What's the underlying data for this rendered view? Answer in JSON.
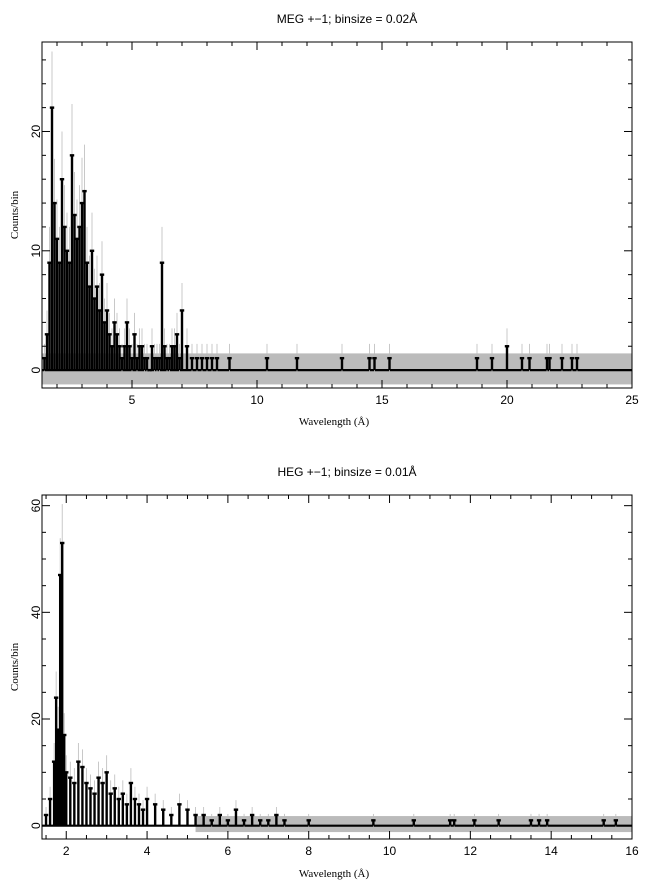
{
  "chart_data": [
    {
      "type": "histogram",
      "title": "MEG +−1; binsize = 0.02Å",
      "xlabel": "Wavelength (Å)",
      "ylabel": "Counts/bin",
      "xlim": [
        1.4,
        25
      ],
      "ylim": [
        -1.5,
        27.5
      ],
      "xticks": [
        5,
        10,
        15,
        20,
        25
      ],
      "yticks": [
        0,
        10,
        20
      ],
      "model_band": {
        "y_low": -1.2,
        "y_high": 1.4,
        "x_start": 1.4
      },
      "colors": {
        "data": "#000000",
        "error_bars": "#bbbbbb",
        "model_band": "#bbbbbb"
      },
      "data": {
        "x": [
          1.5,
          1.6,
          1.7,
          1.8,
          1.9,
          2.0,
          2.1,
          2.2,
          2.3,
          2.4,
          2.5,
          2.6,
          2.7,
          2.8,
          2.9,
          3.0,
          3.1,
          3.2,
          3.3,
          3.4,
          3.5,
          3.6,
          3.7,
          3.8,
          3.9,
          4.0,
          4.1,
          4.2,
          4.3,
          4.4,
          4.5,
          4.6,
          4.7,
          4.8,
          4.9,
          5.0,
          5.1,
          5.2,
          5.3,
          5.4,
          5.5,
          5.6,
          5.7,
          5.8,
          5.9,
          6.0,
          6.1,
          6.2,
          6.3,
          6.4,
          6.5,
          6.6,
          6.7,
          6.8,
          6.9,
          7.0,
          7.2,
          7.4,
          7.6,
          7.8,
          8.0,
          8.2,
          8.4,
          8.9,
          10.4,
          11.6,
          13.4,
          14.5,
          14.7,
          15.3,
          18.8,
          19.4,
          20.0,
          20.6,
          20.9,
          21.6,
          21.7,
          22.2,
          22.6,
          22.8
        ],
        "y": [
          1,
          3,
          9,
          22,
          14,
          11,
          9,
          16,
          12,
          10,
          9,
          18,
          13,
          11,
          12,
          14,
          15,
          9,
          7,
          10,
          6,
          7,
          5,
          8,
          4,
          5,
          3,
          2,
          4,
          3,
          2,
          1,
          2,
          4,
          2,
          1,
          3,
          1,
          2,
          2,
          1,
          1,
          0,
          2,
          1,
          1,
          1,
          9,
          2,
          1,
          1,
          2,
          2,
          3,
          1,
          5,
          2,
          1,
          1,
          1,
          1,
          1,
          1,
          1,
          1,
          1,
          1,
          1,
          1,
          1,
          1,
          1,
          2,
          1,
          1,
          1,
          1,
          1,
          1,
          1
        ],
        "yerr": [
          1.2,
          2.0,
          3.0,
          4.7,
          3.7,
          3.3,
          3.0,
          4.0,
          3.5,
          3.2,
          3.0,
          4.3,
          3.6,
          3.3,
          3.5,
          3.8,
          3.9,
          3.0,
          2.6,
          3.2,
          2.5,
          2.6,
          2.3,
          2.8,
          2.0,
          2.3,
          1.8,
          1.5,
          2.0,
          1.8,
          1.5,
          1.2,
          1.5,
          2.0,
          1.5,
          1.2,
          1.8,
          1.2,
          1.5,
          1.5,
          1.2,
          1.2,
          1.0,
          1.5,
          1.2,
          1.2,
          1.2,
          3.0,
          1.5,
          1.2,
          1.2,
          1.5,
          1.5,
          1.8,
          1.2,
          2.3,
          1.5,
          1.2,
          1.2,
          1.2,
          1.2,
          1.2,
          1.2,
          1.2,
          1.2,
          1.2,
          1.2,
          1.2,
          1.2,
          1.2,
          1.2,
          1.2,
          1.5,
          1.2,
          1.2,
          1.2,
          1.2,
          1.2,
          1.2,
          1.2
        ]
      }
    },
    {
      "type": "histogram",
      "title": "HEG +−1; binsize = 0.01Å",
      "xlabel": "Wavelength (Å)",
      "ylabel": "Counts/bin",
      "xlim": [
        1.4,
        16
      ],
      "ylim": [
        -2.5,
        62
      ],
      "xticks": [
        2,
        4,
        6,
        8,
        10,
        12,
        14,
        16
      ],
      "yticks": [
        0,
        20,
        40,
        60
      ],
      "model_band": {
        "y_low": -1.2,
        "y_high": 1.8,
        "x_start": 5.2
      },
      "colors": {
        "data": "#000000",
        "error_bars": "#bbbbbb",
        "model_band": "#bbbbbb"
      },
      "data": {
        "x": [
          1.5,
          1.6,
          1.7,
          1.75,
          1.8,
          1.85,
          1.9,
          1.95,
          2.0,
          2.1,
          2.2,
          2.3,
          2.4,
          2.5,
          2.6,
          2.7,
          2.8,
          2.9,
          3.0,
          3.1,
          3.2,
          3.3,
          3.4,
          3.5,
          3.6,
          3.7,
          3.8,
          3.9,
          4.0,
          4.2,
          4.4,
          4.6,
          4.8,
          5.0,
          5.2,
          5.4,
          5.6,
          5.8,
          6.0,
          6.2,
          6.4,
          6.6,
          6.8,
          7.0,
          7.2,
          7.4,
          8.0,
          9.6,
          10.6,
          11.5,
          11.6,
          12.1,
          12.7,
          13.5,
          13.7,
          13.9,
          15.3,
          15.6
        ],
        "y": [
          2,
          5,
          12,
          24,
          18,
          47,
          53,
          17,
          10,
          9,
          8,
          12,
          11,
          8,
          7,
          6,
          9,
          8,
          10,
          6,
          7,
          5,
          6,
          4,
          8,
          5,
          4,
          3,
          5,
          4,
          3,
          2,
          4,
          3,
          2,
          2,
          1,
          2,
          1,
          3,
          1,
          2,
          1,
          1,
          2,
          1,
          1,
          1,
          1,
          1,
          1,
          1,
          1,
          1,
          1,
          1,
          1,
          1
        ],
        "yerr": [
          1.5,
          2.3,
          3.5,
          4.9,
          4.3,
          6.9,
          7.3,
          4.1,
          3.2,
          3.0,
          2.8,
          3.5,
          3.3,
          2.8,
          2.6,
          2.5,
          3.0,
          2.8,
          3.2,
          2.5,
          2.6,
          2.3,
          2.5,
          2.0,
          2.8,
          2.3,
          2.0,
          1.8,
          2.3,
          2.0,
          1.8,
          1.5,
          2.0,
          1.8,
          1.5,
          1.5,
          1.2,
          1.5,
          1.2,
          1.8,
          1.2,
          1.5,
          1.2,
          1.2,
          1.5,
          1.2,
          1.2,
          1.2,
          1.2,
          1.2,
          1.2,
          1.2,
          1.2,
          1.2,
          1.2,
          1.2,
          1.2,
          1.2
        ]
      }
    }
  ]
}
